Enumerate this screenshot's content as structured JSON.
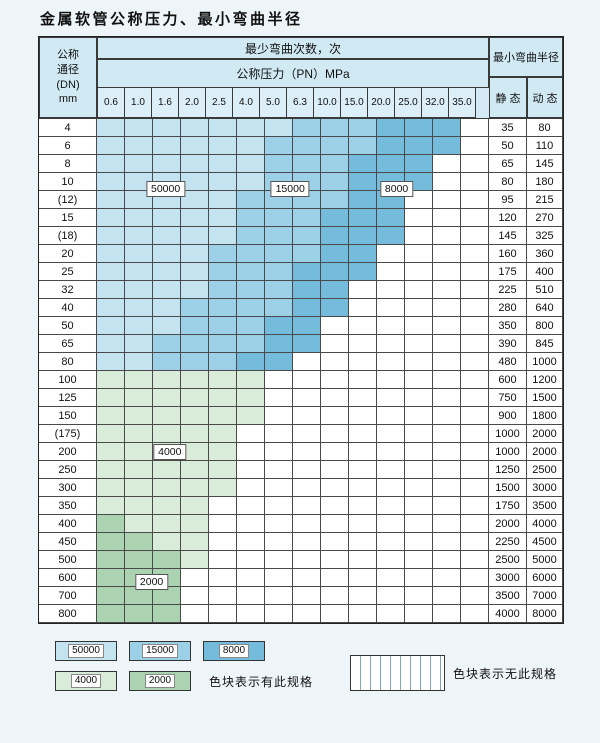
{
  "page": {
    "title": "金属软管公称压力、最小弯曲半径"
  },
  "colors": {
    "b50": "#c4e3f0",
    "b15": "#9cd0e7",
    "b8": "#74bbdc",
    "g4": "#d9ebd9",
    "g2": "#abd2b1",
    "none": "#ffffff",
    "header_bg": "#d0e9f3",
    "page_bg": "#eef5f8"
  },
  "table": {
    "header": {
      "dn_lines": [
        "公称",
        "通径",
        "(DN)",
        "mm"
      ],
      "bend_times": "最少弯曲次数，次",
      "pressure_unit": "公称压力（PN）MPa",
      "pressures": [
        "0.6",
        "1.0",
        "1.6",
        "2.0",
        "2.5",
        "4.0",
        "5.0",
        "6.3",
        "10.0",
        "15.0",
        "20.0",
        "25.0",
        "32.0",
        "35.0"
      ],
      "radius": "最小弯曲半径",
      "static": "静 态",
      "dynamic": "动 态"
    },
    "rows": [
      {
        "dn": "4",
        "static": "35",
        "dynamic": "80",
        "spans": [
          [
            "b50",
            7
          ],
          [
            "b15",
            3
          ],
          [
            "b8",
            3
          ],
          [
            "none",
            1
          ]
        ]
      },
      {
        "dn": "6",
        "static": "50",
        "dynamic": "110",
        "spans": [
          [
            "b50",
            6
          ],
          [
            "b15",
            4
          ],
          [
            "b8",
            3
          ],
          [
            "none",
            1
          ]
        ]
      },
      {
        "dn": "8",
        "static": "65",
        "dynamic": "145",
        "spans": [
          [
            "b50",
            6
          ],
          [
            "b15",
            3
          ],
          [
            "b8",
            3
          ],
          [
            "none",
            2
          ]
        ]
      },
      {
        "dn": "10",
        "static": "80",
        "dynamic": "180",
        "spans": [
          [
            "b50",
            6
          ],
          [
            "b15",
            3
          ],
          [
            "b8",
            3
          ],
          [
            "none",
            2
          ]
        ]
      },
      {
        "dn": "(12)",
        "static": "95",
        "dynamic": "215",
        "spans": [
          [
            "b50",
            5
          ],
          [
            "b15",
            4
          ],
          [
            "b8",
            2
          ],
          [
            "none",
            3
          ]
        ]
      },
      {
        "dn": "15",
        "static": "120",
        "dynamic": "270",
        "spans": [
          [
            "b50",
            5
          ],
          [
            "b15",
            3
          ],
          [
            "b8",
            3
          ],
          [
            "none",
            3
          ]
        ]
      },
      {
        "dn": "(18)",
        "static": "145",
        "dynamic": "325",
        "spans": [
          [
            "b50",
            5
          ],
          [
            "b15",
            3
          ],
          [
            "b8",
            3
          ],
          [
            "none",
            3
          ]
        ]
      },
      {
        "dn": "20",
        "static": "160",
        "dynamic": "360",
        "spans": [
          [
            "b50",
            4
          ],
          [
            "b15",
            4
          ],
          [
            "b8",
            2
          ],
          [
            "none",
            4
          ]
        ]
      },
      {
        "dn": "25",
        "static": "175",
        "dynamic": "400",
        "spans": [
          [
            "b50",
            4
          ],
          [
            "b15",
            3
          ],
          [
            "b8",
            3
          ],
          [
            "none",
            4
          ]
        ]
      },
      {
        "dn": "32",
        "static": "225",
        "dynamic": "510",
        "spans": [
          [
            "b50",
            4
          ],
          [
            "b15",
            3
          ],
          [
            "b8",
            2
          ],
          [
            "none",
            5
          ]
        ]
      },
      {
        "dn": "40",
        "static": "280",
        "dynamic": "640",
        "spans": [
          [
            "b50",
            3
          ],
          [
            "b15",
            4
          ],
          [
            "b8",
            2
          ],
          [
            "none",
            5
          ]
        ]
      },
      {
        "dn": "50",
        "static": "350",
        "dynamic": "800",
        "spans": [
          [
            "b50",
            3
          ],
          [
            "b15",
            3
          ],
          [
            "b8",
            2
          ],
          [
            "none",
            6
          ]
        ]
      },
      {
        "dn": "65",
        "static": "390",
        "dynamic": "845",
        "spans": [
          [
            "b50",
            2
          ],
          [
            "b15",
            4
          ],
          [
            "b8",
            2
          ],
          [
            "none",
            6
          ]
        ]
      },
      {
        "dn": "80",
        "static": "480",
        "dynamic": "1000",
        "spans": [
          [
            "b50",
            2
          ],
          [
            "b15",
            3
          ],
          [
            "b8",
            2
          ],
          [
            "none",
            7
          ]
        ]
      },
      {
        "dn": "100",
        "static": "600",
        "dynamic": "1200",
        "spans": [
          [
            "g4",
            6
          ],
          [
            "none",
            8
          ]
        ]
      },
      {
        "dn": "125",
        "static": "750",
        "dynamic": "1500",
        "spans": [
          [
            "g4",
            6
          ],
          [
            "none",
            8
          ]
        ]
      },
      {
        "dn": "150",
        "static": "900",
        "dynamic": "1800",
        "spans": [
          [
            "g4",
            6
          ],
          [
            "none",
            8
          ]
        ]
      },
      {
        "dn": "(175)",
        "static": "1000",
        "dynamic": "2000",
        "spans": [
          [
            "g4",
            5
          ],
          [
            "none",
            9
          ]
        ]
      },
      {
        "dn": "200",
        "static": "1000",
        "dynamic": "2000",
        "spans": [
          [
            "g4",
            5
          ],
          [
            "none",
            9
          ]
        ]
      },
      {
        "dn": "250",
        "static": "1250",
        "dynamic": "2500",
        "spans": [
          [
            "g4",
            5
          ],
          [
            "none",
            9
          ]
        ]
      },
      {
        "dn": "300",
        "static": "1500",
        "dynamic": "3000",
        "spans": [
          [
            "g4",
            5
          ],
          [
            "none",
            9
          ]
        ]
      },
      {
        "dn": "350",
        "static": "1750",
        "dynamic": "3500",
        "spans": [
          [
            "g4",
            4
          ],
          [
            "none",
            10
          ]
        ]
      },
      {
        "dn": "400",
        "static": "2000",
        "dynamic": "4000",
        "spans": [
          [
            "g2",
            1
          ],
          [
            "g4",
            3
          ],
          [
            "none",
            10
          ]
        ]
      },
      {
        "dn": "450",
        "static": "2250",
        "dynamic": "4500",
        "spans": [
          [
            "g2",
            2
          ],
          [
            "g4",
            2
          ],
          [
            "none",
            10
          ]
        ]
      },
      {
        "dn": "500",
        "static": "2500",
        "dynamic": "5000",
        "spans": [
          [
            "g2",
            3
          ],
          [
            "g4",
            1
          ],
          [
            "none",
            10
          ]
        ]
      },
      {
        "dn": "600",
        "static": "3000",
        "dynamic": "6000",
        "spans": [
          [
            "g2",
            3
          ],
          [
            "none",
            11
          ]
        ]
      },
      {
        "dn": "700",
        "static": "3500",
        "dynamic": "7000",
        "spans": [
          [
            "g2",
            3
          ],
          [
            "none",
            11
          ]
        ]
      },
      {
        "dn": "800",
        "static": "4000",
        "dynamic": "8000",
        "spans": [
          [
            "g2",
            3
          ],
          [
            "none",
            11
          ]
        ]
      }
    ],
    "overlays": [
      {
        "label": "50000",
        "row": 3.4,
        "col": 1.45,
        "span": 2
      },
      {
        "label": "15000",
        "row": 3.4,
        "col": 5.9,
        "span": 2
      },
      {
        "label": "8000",
        "row": 3.4,
        "col": 9.7,
        "span": 2
      },
      {
        "label": "4000",
        "row": 18,
        "col": 1.6,
        "span": 2
      },
      {
        "label": "2000",
        "row": 25.2,
        "col": 0.95,
        "span": 2
      }
    ]
  },
  "legend": {
    "row1": [
      {
        "label": "50000",
        "color": "b50"
      },
      {
        "label": "15000",
        "color": "b15"
      },
      {
        "label": "8000",
        "color": "b8"
      }
    ],
    "row2": [
      {
        "label": "4000",
        "color": "g4"
      },
      {
        "label": "2000",
        "color": "g2"
      }
    ],
    "has_spec": "色块表示有此规格",
    "no_spec": "色块表示无此规格"
  }
}
